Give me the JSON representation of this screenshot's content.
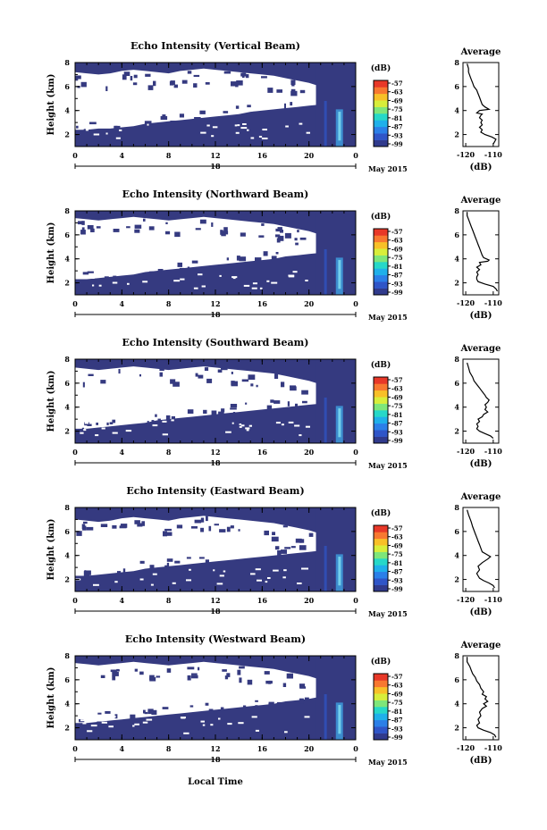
{
  "colorbar": {
    "unit": "(dB)",
    "ticks": [
      "-57",
      "-63",
      "-69",
      "-75",
      "-81",
      "-87",
      "-93",
      "-99"
    ],
    "colors": [
      "#303a8c",
      "#2f55c8",
      "#2b7fe8",
      "#1fb0ea",
      "#26d8c8",
      "#7ee67a",
      "#d8ee3a",
      "#f8c028",
      "#f87830",
      "#e83828"
    ]
  },
  "colors": {
    "heatmap_fill": "#353a80",
    "echo_bright": "#3fa8e8",
    "echo_core": "#7edcf0"
  },
  "shared_axes": {
    "x_tick_labels": [
      "0",
      "4",
      "8",
      "12",
      "16",
      "20",
      "0"
    ],
    "date_day": "18",
    "date_month": "May 2015",
    "xlabel": "Local Time"
  },
  "chart_data": [
    {
      "type": "heatmap",
      "title": "Echo Intensity (Vertical Beam)",
      "ylabel": "Height (km)",
      "y_tick_labels": [
        "2",
        "4",
        "6",
        "8"
      ],
      "xlim": [
        0,
        24
      ],
      "ylim": [
        1,
        8
      ],
      "mask_bottom_km": [
        2.4,
        2.4,
        2.5,
        2.5,
        2.6,
        2.7,
        2.9,
        3.0,
        3.1,
        3.2,
        3.3,
        3.4,
        3.5,
        3.6,
        3.7,
        3.9,
        4.0,
        4.1,
        4.2,
        4.3,
        4.4,
        4.5,
        4.7,
        4.9,
        5.0
      ],
      "mask_top_km": [
        7.2,
        7.1,
        7.0,
        7.1,
        7.3,
        7.4,
        7.3,
        7.2,
        7.1,
        7.3,
        7.4,
        7.5,
        7.4,
        7.3,
        7.2,
        7.1,
        7.0,
        6.9,
        6.7,
        6.5,
        6.3,
        6.0,
        5.5,
        5.0,
        4.6
      ],
      "average": {
        "title": "Average",
        "xlabel": "(dB)",
        "x_tick_labels": [
          "-120",
          "-110"
        ],
        "y_tick_labels": [
          "2",
          "4",
          "6",
          "8"
        ],
        "xlim": [
          -121,
          -108
        ],
        "ylim": [
          1,
          8
        ],
        "x_dB": [
          -110.0,
          -109.5,
          -109.0,
          -110.5,
          -113.0,
          -114.5,
          -114.0,
          -115.0,
          -114.0,
          -114.5,
          -114.0,
          -115.0,
          -114.5,
          -114.0,
          -116.0,
          -115.0,
          -111.5,
          -113.0,
          -114.0,
          -114.5,
          -115.0,
          -115.5,
          -116.0,
          -117.0,
          -117.5,
          -118.0,
          -118.5,
          -119.0,
          -119.0,
          -119.5
        ],
        "y_km": [
          1.2,
          1.4,
          1.6,
          1.8,
          2.0,
          2.2,
          2.4,
          2.6,
          2.8,
          3.0,
          3.2,
          3.4,
          3.6,
          3.7,
          3.8,
          4.0,
          4.1,
          4.3,
          4.5,
          4.8,
          5.1,
          5.4,
          5.7,
          6.0,
          6.3,
          6.6,
          6.9,
          7.2,
          7.5,
          7.9
        ]
      }
    },
    {
      "type": "heatmap",
      "title": "Echo Intensity (Northward Beam)",
      "ylabel": "Height (km)",
      "y_tick_labels": [
        "2",
        "4",
        "6",
        "8"
      ],
      "xlim": [
        0,
        24
      ],
      "ylim": [
        1,
        8
      ],
      "mask_bottom_km": [
        2.3,
        2.3,
        2.4,
        2.5,
        2.6,
        2.7,
        2.9,
        3.0,
        3.1,
        3.2,
        3.3,
        3.4,
        3.5,
        3.6,
        3.7,
        3.8,
        3.9,
        4.0,
        4.2,
        4.3,
        4.4,
        4.5,
        4.7,
        4.9,
        5.0
      ],
      "mask_top_km": [
        7.4,
        7.3,
        7.2,
        7.3,
        7.4,
        7.5,
        7.4,
        7.3,
        7.2,
        7.3,
        7.4,
        7.5,
        7.4,
        7.3,
        7.2,
        7.1,
        7.0,
        6.9,
        6.7,
        6.5,
        6.3,
        6.0,
        5.6,
        5.1,
        4.7
      ],
      "average": {
        "title": "Average",
        "xlabel": "(dB)",
        "x_tick_labels": [
          "-120",
          "-110"
        ],
        "y_tick_labels": [
          "2",
          "4",
          "6",
          "8"
        ],
        "xlim": [
          -121,
          -108
        ],
        "ylim": [
          1,
          8
        ],
        "x_dB": [
          -108.5,
          -109.0,
          -110.0,
          -113.0,
          -115.5,
          -116.0,
          -116.0,
          -115.5,
          -116.0,
          -115.0,
          -116.0,
          -114.5,
          -115.0,
          -112.0,
          -111.5,
          -113.5,
          -114.0,
          -114.5,
          -115.0,
          -115.5,
          -116.0,
          -116.5,
          -117.0,
          -117.5,
          -118.0,
          -118.5,
          -119.0,
          -119.5,
          -119.5
        ],
        "y_km": [
          1.3,
          1.5,
          1.7,
          1.9,
          2.1,
          2.3,
          2.5,
          2.7,
          2.9,
          3.1,
          3.3,
          3.5,
          3.7,
          3.8,
          3.9,
          4.1,
          4.3,
          4.6,
          4.9,
          5.2,
          5.5,
          5.8,
          6.1,
          6.4,
          6.7,
          7.0,
          7.3,
          7.6,
          7.9
        ]
      }
    },
    {
      "type": "heatmap",
      "title": "Echo Intensity (Southward Beam)",
      "ylabel": "Height (km)",
      "y_tick_labels": [
        "2",
        "4",
        "6",
        "8"
      ],
      "xlim": [
        0,
        24
      ],
      "ylim": [
        1,
        8
      ],
      "mask_bottom_km": [
        2.2,
        2.2,
        2.3,
        2.4,
        2.5,
        2.6,
        2.7,
        2.9,
        3.0,
        3.1,
        3.2,
        3.3,
        3.4,
        3.5,
        3.6,
        3.7,
        3.8,
        3.9,
        4.0,
        4.1,
        4.2,
        4.3,
        4.5,
        4.7,
        4.9
      ],
      "mask_top_km": [
        7.3,
        7.2,
        7.1,
        7.2,
        7.3,
        7.4,
        7.3,
        7.2,
        7.1,
        7.2,
        7.3,
        7.4,
        7.3,
        7.2,
        7.1,
        7.0,
        6.9,
        6.8,
        6.6,
        6.4,
        6.2,
        5.9,
        5.5,
        5.0,
        4.6
      ],
      "average": {
        "title": "Average",
        "xlabel": "(dB)",
        "x_tick_labels": [
          "-120",
          "-110"
        ],
        "y_tick_labels": [
          "2",
          "4",
          "6",
          "8"
        ],
        "xlim": [
          -121,
          -108
        ],
        "ylim": [
          1,
          8
        ],
        "x_dB": [
          -110.0,
          -111.0,
          -113.0,
          -115.0,
          -116.0,
          -115.5,
          -116.0,
          -115.0,
          -115.5,
          -114.0,
          -113.5,
          -112.0,
          -113.0,
          -112.5,
          -113.0,
          -112.0,
          -111.5,
          -112.5,
          -113.0,
          -114.0,
          -115.0,
          -116.0,
          -117.0,
          -117.5,
          -118.5,
          -119.0,
          -119.5
        ],
        "y_km": [
          1.4,
          1.6,
          1.8,
          2.0,
          2.2,
          2.4,
          2.6,
          2.8,
          3.0,
          3.2,
          3.4,
          3.6,
          3.8,
          4.0,
          4.2,
          4.4,
          4.6,
          4.8,
          5.0,
          5.3,
          5.6,
          5.9,
          6.2,
          6.5,
          6.9,
          7.3,
          7.7
        ]
      }
    },
    {
      "type": "heatmap",
      "title": "Echo Intensity (Eastward Beam)",
      "ylabel": "Height (km)",
      "y_tick_labels": [
        "2",
        "4",
        "6",
        "8"
      ],
      "xlim": [
        0,
        24
      ],
      "ylim": [
        1,
        8
      ],
      "mask_bottom_km": [
        2.3,
        2.3,
        2.4,
        2.5,
        2.6,
        2.7,
        2.9,
        3.0,
        3.1,
        3.2,
        3.3,
        3.4,
        3.5,
        3.6,
        3.7,
        3.8,
        3.9,
        4.0,
        4.1,
        4.2,
        4.3,
        4.4,
        4.6,
        4.8,
        5.0
      ],
      "mask_top_km": [
        7.0,
        6.9,
        6.8,
        6.9,
        7.1,
        7.2,
        7.1,
        7.0,
        6.9,
        7.1,
        7.2,
        7.3,
        7.2,
        7.1,
        7.0,
        6.9,
        6.8,
        6.7,
        6.5,
        6.3,
        6.1,
        5.8,
        5.4,
        4.9,
        4.5
      ],
      "average": {
        "title": "Average",
        "xlabel": "(dB)",
        "x_tick_labels": [
          "-120",
          "-110"
        ],
        "y_tick_labels": [
          "2",
          "4",
          "6",
          "8"
        ],
        "xlim": [
          -121,
          -108
        ],
        "ylim": [
          1,
          8
        ],
        "x_dB": [
          -109.5,
          -110.0,
          -111.5,
          -113.5,
          -115.0,
          -115.5,
          -116.0,
          -115.0,
          -115.5,
          -114.0,
          -112.0,
          -111.0,
          -112.5,
          -114.0,
          -114.5,
          -115.0,
          -115.5,
          -116.0,
          -116.5,
          -117.0,
          -117.5,
          -118.0,
          -118.5,
          -119.0,
          -119.5
        ],
        "y_km": [
          1.3,
          1.5,
          1.7,
          1.9,
          2.1,
          2.3,
          2.5,
          2.8,
          3.1,
          3.4,
          3.7,
          3.9,
          4.1,
          4.3,
          4.6,
          4.9,
          5.2,
          5.5,
          5.8,
          6.1,
          6.4,
          6.8,
          7.1,
          7.4,
          7.8
        ]
      }
    },
    {
      "type": "heatmap",
      "title": "Echo Intensity (Westward Beam)",
      "ylabel": "Height (km)",
      "y_tick_labels": [
        "2",
        "4",
        "6",
        "8"
      ],
      "xlim": [
        0,
        24
      ],
      "ylim": [
        1,
        8
      ],
      "mask_bottom_km": [
        2.4,
        2.4,
        2.5,
        2.6,
        2.7,
        2.8,
        2.9,
        3.0,
        3.1,
        3.2,
        3.3,
        3.4,
        3.5,
        3.6,
        3.7,
        3.8,
        3.9,
        4.0,
        4.2,
        4.3,
        4.4,
        4.6,
        4.8,
        5.0,
        5.1
      ],
      "mask_top_km": [
        7.4,
        7.3,
        7.2,
        7.3,
        7.4,
        7.5,
        7.4,
        7.3,
        7.2,
        7.3,
        7.4,
        7.5,
        7.4,
        7.3,
        7.2,
        7.1,
        7.0,
        6.9,
        6.7,
        6.5,
        6.3,
        6.0,
        5.6,
        5.1,
        4.7
      ],
      "average": {
        "title": "Average",
        "xlabel": "(dB)",
        "x_tick_labels": [
          "-120",
          "-110"
        ],
        "y_tick_labels": [
          "2",
          "4",
          "6",
          "8"
        ],
        "xlim": [
          -121,
          -108
        ],
        "ylim": [
          1,
          8
        ],
        "x_dB": [
          -109.0,
          -109.5,
          -111.0,
          -113.5,
          -115.5,
          -116.0,
          -115.0,
          -115.5,
          -114.5,
          -115.0,
          -114.0,
          -112.5,
          -113.5,
          -112.0,
          -113.0,
          -112.5,
          -114.0,
          -113.5,
          -114.5,
          -115.0,
          -116.0,
          -116.5,
          -117.5,
          -118.0,
          -118.5,
          -119.5,
          -119.5
        ],
        "y_km": [
          1.2,
          1.4,
          1.6,
          1.8,
          2.0,
          2.2,
          2.4,
          2.7,
          3.0,
          3.3,
          3.6,
          3.8,
          4.0,
          4.2,
          4.4,
          4.6,
          4.8,
          5.0,
          5.3,
          5.6,
          5.9,
          6.2,
          6.5,
          6.8,
          7.1,
          7.5,
          7.9
        ]
      }
    }
  ]
}
